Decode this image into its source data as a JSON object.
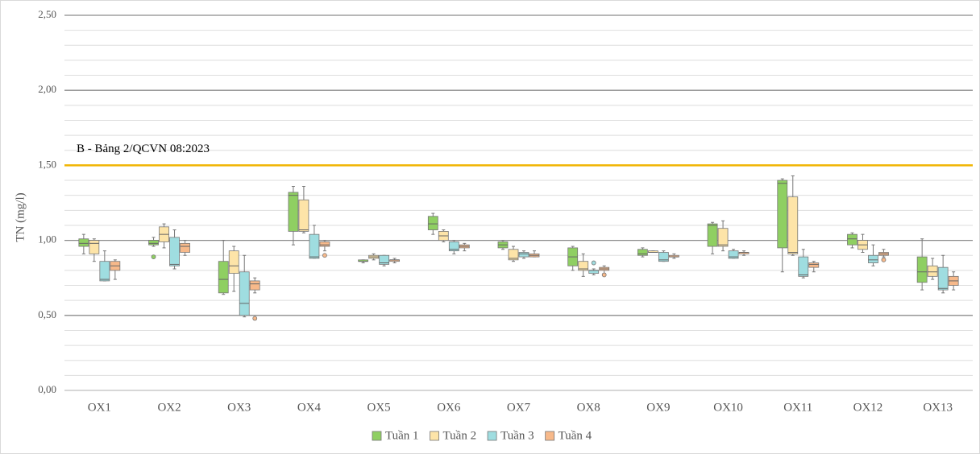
{
  "chart_data": {
    "type": "box",
    "y_label": "TN (mg/l)",
    "categories": [
      "OX1",
      "OX2",
      "OX3",
      "OX4",
      "OX5",
      "OX6",
      "OX7",
      "OX8",
      "OX9",
      "OX10",
      "OX11",
      "OX12",
      "OX13"
    ],
    "ylim": [
      0,
      2.5
    ],
    "yticks": [
      {
        "value": 0,
        "label": "0,00"
      },
      {
        "value": 0.5,
        "label": "0,50"
      },
      {
        "value": 1,
        "label": "1,00"
      },
      {
        "value": 1.5,
        "label": "1,50"
      },
      {
        "value": 2,
        "label": "2,00"
      },
      {
        "value": 2.5,
        "label": "2,50"
      }
    ],
    "minor_yticks": [
      0.1,
      0.2,
      0.3,
      0.4,
      0.6,
      0.7,
      0.8,
      0.9,
      1.1,
      1.2,
      1.3,
      1.4,
      1.6,
      1.7,
      1.8,
      1.9,
      2.1,
      2.2,
      2.3,
      2.4
    ],
    "grid": true,
    "legend": "bottom",
    "reference_line": {
      "value": 1.5,
      "label": "B - Bảng 2/QCVN 08:2023",
      "color": "#f0b400"
    },
    "series": [
      {
        "name": "Tuần 1",
        "color": "#8fcf62",
        "values": [
          {
            "min": 0.91,
            "q1": 0.96,
            "median": 0.98,
            "q3": 1.01,
            "max": 1.04
          },
          {
            "min": 0.96,
            "q1": 0.97,
            "median": 0.98,
            "q3": 1.0,
            "max": 1.02
          },
          {
            "min": 0.64,
            "q1": 0.65,
            "median": 0.74,
            "q3": 0.86,
            "max": 1.0
          },
          {
            "min": 0.97,
            "q1": 1.06,
            "median": 1.3,
            "q3": 1.32,
            "max": 1.36
          },
          {
            "min": 0.85,
            "q1": 0.86,
            "median": 0.86,
            "q3": 0.87,
            "max": 0.87
          },
          {
            "min": 1.04,
            "q1": 1.07,
            "median": 1.11,
            "q3": 1.16,
            "max": 1.18
          },
          {
            "min": 0.94,
            "q1": 0.95,
            "median": 0.97,
            "q3": 0.99,
            "max": 1.0
          },
          {
            "min": 0.8,
            "q1": 0.83,
            "median": 0.89,
            "q3": 0.95,
            "max": 0.96
          },
          {
            "min": 0.89,
            "q1": 0.9,
            "median": 0.91,
            "q3": 0.94,
            "max": 0.95
          },
          {
            "min": 0.91,
            "q1": 0.96,
            "median": 1.1,
            "q3": 1.11,
            "max": 1.12
          },
          {
            "min": 0.79,
            "q1": 0.95,
            "median": 1.38,
            "q3": 1.4,
            "max": 1.41
          },
          {
            "min": 0.95,
            "q1": 0.97,
            "median": 1.01,
            "q3": 1.04,
            "max": 1.05
          },
          {
            "min": 0.67,
            "q1": 0.72,
            "median": 0.79,
            "q3": 0.89,
            "max": 1.01
          }
        ],
        "outliers": [
          [],
          [
            0.89
          ],
          [],
          [],
          [],
          [],
          [],
          [],
          [],
          [],
          [],
          [],
          []
        ]
      },
      {
        "name": "Tuần 2",
        "color": "#fde4a8",
        "values": [
          {
            "min": 0.86,
            "q1": 0.91,
            "median": 0.98,
            "q3": 1.0,
            "max": 1.01
          },
          {
            "min": 0.95,
            "q1": 0.99,
            "median": 1.04,
            "q3": 1.09,
            "max": 1.11
          },
          {
            "min": 0.66,
            "q1": 0.78,
            "median": 0.83,
            "q3": 0.93,
            "max": 0.96
          },
          {
            "min": 1.05,
            "q1": 1.06,
            "median": 1.07,
            "q3": 1.27,
            "max": 1.36
          },
          {
            "min": 0.87,
            "q1": 0.88,
            "median": 0.89,
            "q3": 0.9,
            "max": 0.91
          },
          {
            "min": 0.99,
            "q1": 1.0,
            "median": 1.03,
            "q3": 1.06,
            "max": 1.07
          },
          {
            "min": 0.86,
            "q1": 0.87,
            "median": 0.88,
            "q3": 0.94,
            "max": 0.96
          },
          {
            "min": 0.76,
            "q1": 0.8,
            "median": 0.81,
            "q3": 0.86,
            "max": 0.91
          },
          {
            "min": 0.92,
            "q1": 0.92,
            "median": 0.92,
            "q3": 0.93,
            "max": 0.93
          },
          {
            "min": 0.93,
            "q1": 0.96,
            "median": 0.97,
            "q3": 1.08,
            "max": 1.13
          },
          {
            "min": 0.9,
            "q1": 0.91,
            "median": 0.92,
            "q3": 1.29,
            "max": 1.43
          },
          {
            "min": 0.92,
            "q1": 0.94,
            "median": 0.97,
            "q3": 1.0,
            "max": 1.04
          },
          {
            "min": 0.74,
            "q1": 0.76,
            "median": 0.79,
            "q3": 0.83,
            "max": 0.88
          }
        ],
        "outliers": [
          [],
          [],
          [],
          [],
          [],
          [],
          [],
          [],
          [],
          [],
          [],
          [],
          []
        ]
      },
      {
        "name": "Tuần 3",
        "color": "#9fdde0",
        "values": [
          {
            "min": 0.73,
            "q1": 0.73,
            "median": 0.74,
            "q3": 0.86,
            "max": 0.93
          },
          {
            "min": 0.81,
            "q1": 0.83,
            "median": 0.84,
            "q3": 1.02,
            "max": 1.07
          },
          {
            "min": 0.49,
            "q1": 0.5,
            "median": 0.58,
            "q3": 0.79,
            "max": 0.9
          },
          {
            "min": 0.88,
            "q1": 0.88,
            "median": 0.89,
            "q3": 1.04,
            "max": 1.1
          },
          {
            "min": 0.83,
            "q1": 0.84,
            "median": 0.85,
            "q3": 0.9,
            "max": 0.9
          },
          {
            "min": 0.91,
            "q1": 0.93,
            "median": 0.94,
            "q3": 0.99,
            "max": 1.0
          },
          {
            "min": 0.88,
            "q1": 0.89,
            "median": 0.91,
            "q3": 0.92,
            "max": 0.93
          },
          {
            "min": 0.77,
            "q1": 0.78,
            "median": 0.8,
            "q3": 0.8,
            "max": 0.81
          },
          {
            "min": 0.86,
            "q1": 0.86,
            "median": 0.87,
            "q3": 0.92,
            "max": 0.93
          },
          {
            "min": 0.88,
            "q1": 0.88,
            "median": 0.89,
            "q3": 0.93,
            "max": 0.94
          },
          {
            "min": 0.75,
            "q1": 0.76,
            "median": 0.77,
            "q3": 0.89,
            "max": 0.94
          },
          {
            "min": 0.83,
            "q1": 0.85,
            "median": 0.87,
            "q3": 0.9,
            "max": 0.97
          },
          {
            "min": 0.65,
            "q1": 0.67,
            "median": 0.68,
            "q3": 0.82,
            "max": 0.9
          }
        ],
        "outliers": [
          [],
          [],
          [],
          [],
          [],
          [],
          [],
          [
            0.85
          ],
          [],
          [],
          [],
          [],
          []
        ]
      },
      {
        "name": "Tuần 4",
        "color": "#f7b98a",
        "values": [
          {
            "min": 0.74,
            "q1": 0.8,
            "median": 0.83,
            "q3": 0.86,
            "max": 0.87
          },
          {
            "min": 0.9,
            "q1": 0.92,
            "median": 0.96,
            "q3": 0.98,
            "max": 1.0
          },
          {
            "min": 0.65,
            "q1": 0.67,
            "median": 0.71,
            "q3": 0.73,
            "max": 0.75
          },
          {
            "min": 0.93,
            "q1": 0.96,
            "median": 0.97,
            "q3": 0.99,
            "max": 1.0
          },
          {
            "min": 0.85,
            "q1": 0.86,
            "median": 0.87,
            "q3": 0.87,
            "max": 0.88
          },
          {
            "min": 0.93,
            "q1": 0.95,
            "median": 0.96,
            "q3": 0.97,
            "max": 0.98
          },
          {
            "min": 0.89,
            "q1": 0.89,
            "median": 0.9,
            "q3": 0.91,
            "max": 0.93
          },
          {
            "min": 0.78,
            "q1": 0.8,
            "median": 0.81,
            "q3": 0.82,
            "max": 0.83
          },
          {
            "min": 0.88,
            "q1": 0.89,
            "median": 0.89,
            "q3": 0.9,
            "max": 0.91
          },
          {
            "min": 0.9,
            "q1": 0.91,
            "median": 0.92,
            "q3": 0.92,
            "max": 0.93
          },
          {
            "min": 0.79,
            "q1": 0.82,
            "median": 0.84,
            "q3": 0.85,
            "max": 0.86
          },
          {
            "min": 0.89,
            "q1": 0.9,
            "median": 0.91,
            "q3": 0.92,
            "max": 0.94
          },
          {
            "min": 0.67,
            "q1": 0.7,
            "median": 0.73,
            "q3": 0.76,
            "max": 0.79
          }
        ],
        "outliers": [
          [],
          [],
          [
            0.48
          ],
          [
            0.9
          ],
          [],
          [],
          [],
          [
            0.77
          ],
          [],
          [],
          [],
          [
            0.87
          ],
          []
        ]
      }
    ]
  }
}
